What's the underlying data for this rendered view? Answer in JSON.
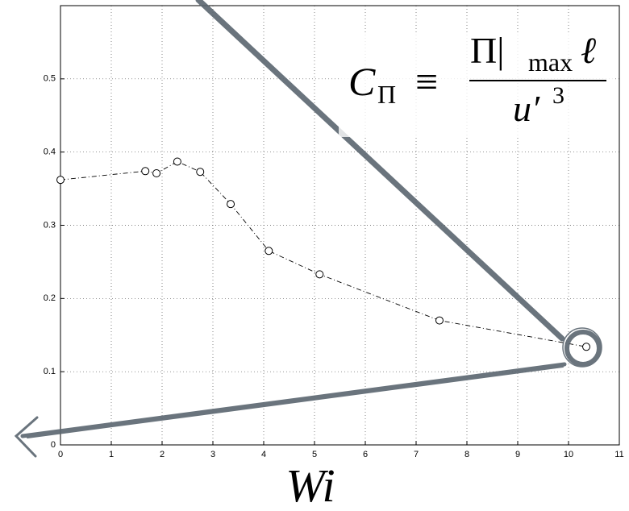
{
  "chart_data": {
    "type": "line",
    "x_label": "Wi",
    "annotation": {
      "lhs": "C",
      "lhs_sub": "Π",
      "eq": "≡",
      "num": "Π|",
      "num_sub": "max",
      "num_tail": "ℓ",
      "den": "u′",
      "den_sup": "3"
    },
    "x": [
      0,
      1.67,
      1.89,
      2.3,
      2.75,
      3.35,
      4.1,
      5.1,
      7.46,
      10.35
    ],
    "values": [
      0.362,
      0.374,
      0.371,
      0.387,
      0.373,
      0.329,
      0.265,
      0.233,
      0.17,
      0.134
    ],
    "color": "#000000",
    "xlim": [
      0,
      11
    ],
    "xticks": [
      0,
      1,
      2,
      3,
      4,
      5,
      6,
      7,
      8,
      9,
      10,
      11
    ],
    "ylim": [
      0,
      0.6
    ],
    "yticks": [
      0,
      0.1,
      0.2,
      0.3,
      0.4,
      0.5
    ],
    "grid": true
  }
}
